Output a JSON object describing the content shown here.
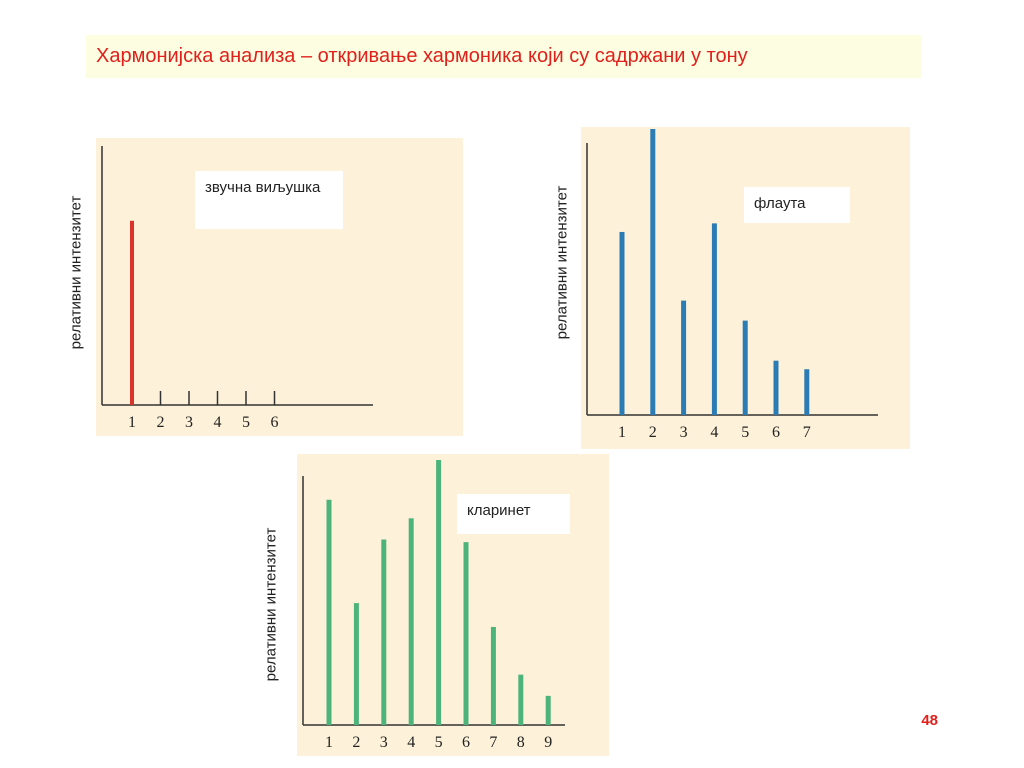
{
  "title": "Хармонијска анализа – откривање хармоника који су садржани у тону",
  "page_number": "48",
  "colors": {
    "title": "#e0201b",
    "panel_bg": "#fdf2d9",
    "title_bg": "#fdfde1"
  },
  "chart_data": [
    {
      "type": "bar",
      "legend": "звучна виљушка",
      "ylabel": "релативни интензитет",
      "color": "#d8332c",
      "categories": [
        "1",
        "2",
        "3",
        "4",
        "5",
        "6"
      ],
      "values": [
        0.69,
        0,
        0,
        0,
        0,
        0
      ],
      "ylim": [
        0,
        1
      ]
    },
    {
      "type": "bar",
      "legend": "флаута",
      "ylabel": "релативни интензитет",
      "color": "#2b7bb4",
      "categories": [
        "1",
        "2",
        "3",
        "4",
        "5",
        "6",
        "7"
      ],
      "values": [
        0.64,
        1.0,
        0.4,
        0.67,
        0.33,
        0.19,
        0.16
      ],
      "ylim": [
        0,
        1
      ]
    },
    {
      "type": "bar",
      "legend": "кларинет",
      "ylabel": "релативни интензитет",
      "color": "#4cb37a",
      "categories": [
        "1",
        "2",
        "3",
        "4",
        "5",
        "6",
        "7",
        "8",
        "9"
      ],
      "values": [
        0.85,
        0.46,
        0.7,
        0.78,
        1.0,
        0.69,
        0.37,
        0.19,
        0.11
      ],
      "ylim": [
        0,
        1
      ]
    }
  ]
}
